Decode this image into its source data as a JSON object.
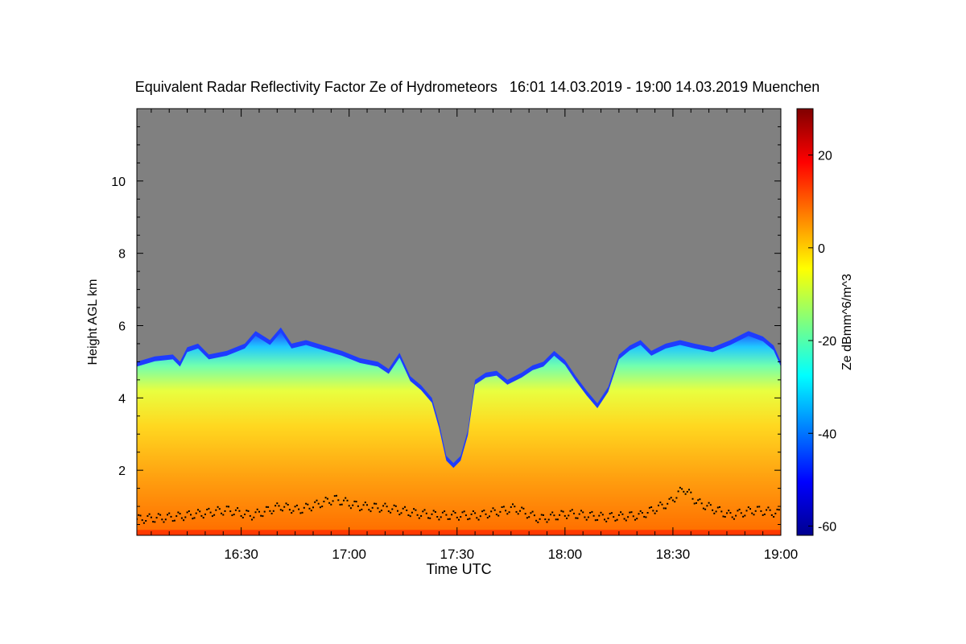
{
  "chart_data": {
    "type": "heatmap",
    "title": "Equivalent Radar Reflectivity Factor Ze of Hydrometeors   16:01 14.03.2019 - 19:00 14.03.2019 Muenchen",
    "xlabel": "Time UTC",
    "ylabel": "Height AGL km",
    "colorbar_label": "Ze dBmm^6/m^3",
    "x_range_minutes": [
      0,
      179
    ],
    "x_ticks": [
      {
        "minutes": 29,
        "label": "16:30"
      },
      {
        "minutes": 59,
        "label": "17:00"
      },
      {
        "minutes": 89,
        "label": "17:30"
      },
      {
        "minutes": 119,
        "label": "18:00"
      },
      {
        "minutes": 149,
        "label": "18:30"
      },
      {
        "minutes": 179,
        "label": "19:00"
      }
    ],
    "y_range_km": [
      0.2,
      12.0
    ],
    "y_ticks": [
      {
        "value": 2,
        "label": "2"
      },
      {
        "value": 4,
        "label": "4"
      },
      {
        "value": 6,
        "label": "6"
      },
      {
        "value": 8,
        "label": "8"
      },
      {
        "value": 10,
        "label": "10"
      }
    ],
    "colorbar_range": [
      -62,
      30
    ],
    "colorbar_ticks": [
      {
        "value": -60,
        "label": "-60"
      },
      {
        "value": -40,
        "label": "-40"
      },
      {
        "value": -20,
        "label": "-20"
      },
      {
        "value": 0,
        "label": "0"
      },
      {
        "value": 20,
        "label": "20"
      }
    ],
    "background_color": "#808080",
    "echo_top_km": [
      {
        "t": 0,
        "h": 5.0
      },
      {
        "t": 5,
        "h": 5.15
      },
      {
        "t": 10,
        "h": 5.2
      },
      {
        "t": 12,
        "h": 5.0
      },
      {
        "t": 14,
        "h": 5.4
      },
      {
        "t": 17,
        "h": 5.5
      },
      {
        "t": 20,
        "h": 5.2
      },
      {
        "t": 25,
        "h": 5.3
      },
      {
        "t": 30,
        "h": 5.5
      },
      {
        "t": 33,
        "h": 5.85
      },
      {
        "t": 37,
        "h": 5.6
      },
      {
        "t": 40,
        "h": 5.95
      },
      {
        "t": 43,
        "h": 5.5
      },
      {
        "t": 47,
        "h": 5.6
      },
      {
        "t": 52,
        "h": 5.45
      },
      {
        "t": 57,
        "h": 5.3
      },
      {
        "t": 62,
        "h": 5.1
      },
      {
        "t": 67,
        "h": 5.0
      },
      {
        "t": 70,
        "h": 4.8
      },
      {
        "t": 73,
        "h": 5.25
      },
      {
        "t": 76,
        "h": 4.6
      },
      {
        "t": 79,
        "h": 4.35
      },
      {
        "t": 82,
        "h": 4.0
      },
      {
        "t": 84,
        "h": 3.3
      },
      {
        "t": 86,
        "h": 2.4
      },
      {
        "t": 88,
        "h": 2.2
      },
      {
        "t": 90,
        "h": 2.4
      },
      {
        "t": 92,
        "h": 3.1
      },
      {
        "t": 94,
        "h": 4.5
      },
      {
        "t": 97,
        "h": 4.7
      },
      {
        "t": 100,
        "h": 4.75
      },
      {
        "t": 103,
        "h": 4.5
      },
      {
        "t": 107,
        "h": 4.7
      },
      {
        "t": 110,
        "h": 4.9
      },
      {
        "t": 113,
        "h": 5.0
      },
      {
        "t": 116,
        "h": 5.3
      },
      {
        "t": 119,
        "h": 5.05
      },
      {
        "t": 122,
        "h": 4.6
      },
      {
        "t": 125,
        "h": 4.2
      },
      {
        "t": 128,
        "h": 3.85
      },
      {
        "t": 131,
        "h": 4.3
      },
      {
        "t": 134,
        "h": 5.2
      },
      {
        "t": 137,
        "h": 5.45
      },
      {
        "t": 140,
        "h": 5.6
      },
      {
        "t": 143,
        "h": 5.3
      },
      {
        "t": 147,
        "h": 5.5
      },
      {
        "t": 151,
        "h": 5.6
      },
      {
        "t": 155,
        "h": 5.5
      },
      {
        "t": 160,
        "h": 5.4
      },
      {
        "t": 165,
        "h": 5.6
      },
      {
        "t": 170,
        "h": 5.85
      },
      {
        "t": 174,
        "h": 5.7
      },
      {
        "t": 177,
        "h": 5.45
      },
      {
        "t": 179,
        "h": 5.0
      }
    ],
    "cloud_base_km": [
      {
        "t": 0,
        "h": 0.65
      },
      {
        "t": 10,
        "h": 0.7
      },
      {
        "t": 18,
        "h": 0.8
      },
      {
        "t": 25,
        "h": 0.9
      },
      {
        "t": 32,
        "h": 0.75
      },
      {
        "t": 40,
        "h": 1.0
      },
      {
        "t": 45,
        "h": 0.9
      },
      {
        "t": 55,
        "h": 1.2
      },
      {
        "t": 62,
        "h": 1.0
      },
      {
        "t": 70,
        "h": 0.95
      },
      {
        "t": 78,
        "h": 0.8
      },
      {
        "t": 85,
        "h": 0.75
      },
      {
        "t": 95,
        "h": 0.75
      },
      {
        "t": 105,
        "h": 0.95
      },
      {
        "t": 112,
        "h": 0.65
      },
      {
        "t": 120,
        "h": 0.8
      },
      {
        "t": 130,
        "h": 0.7
      },
      {
        "t": 140,
        "h": 0.75
      },
      {
        "t": 148,
        "h": 1.1
      },
      {
        "t": 152,
        "h": 1.5
      },
      {
        "t": 156,
        "h": 1.1
      },
      {
        "t": 165,
        "h": 0.75
      },
      {
        "t": 172,
        "h": 0.9
      },
      {
        "t": 179,
        "h": 0.8
      }
    ]
  }
}
